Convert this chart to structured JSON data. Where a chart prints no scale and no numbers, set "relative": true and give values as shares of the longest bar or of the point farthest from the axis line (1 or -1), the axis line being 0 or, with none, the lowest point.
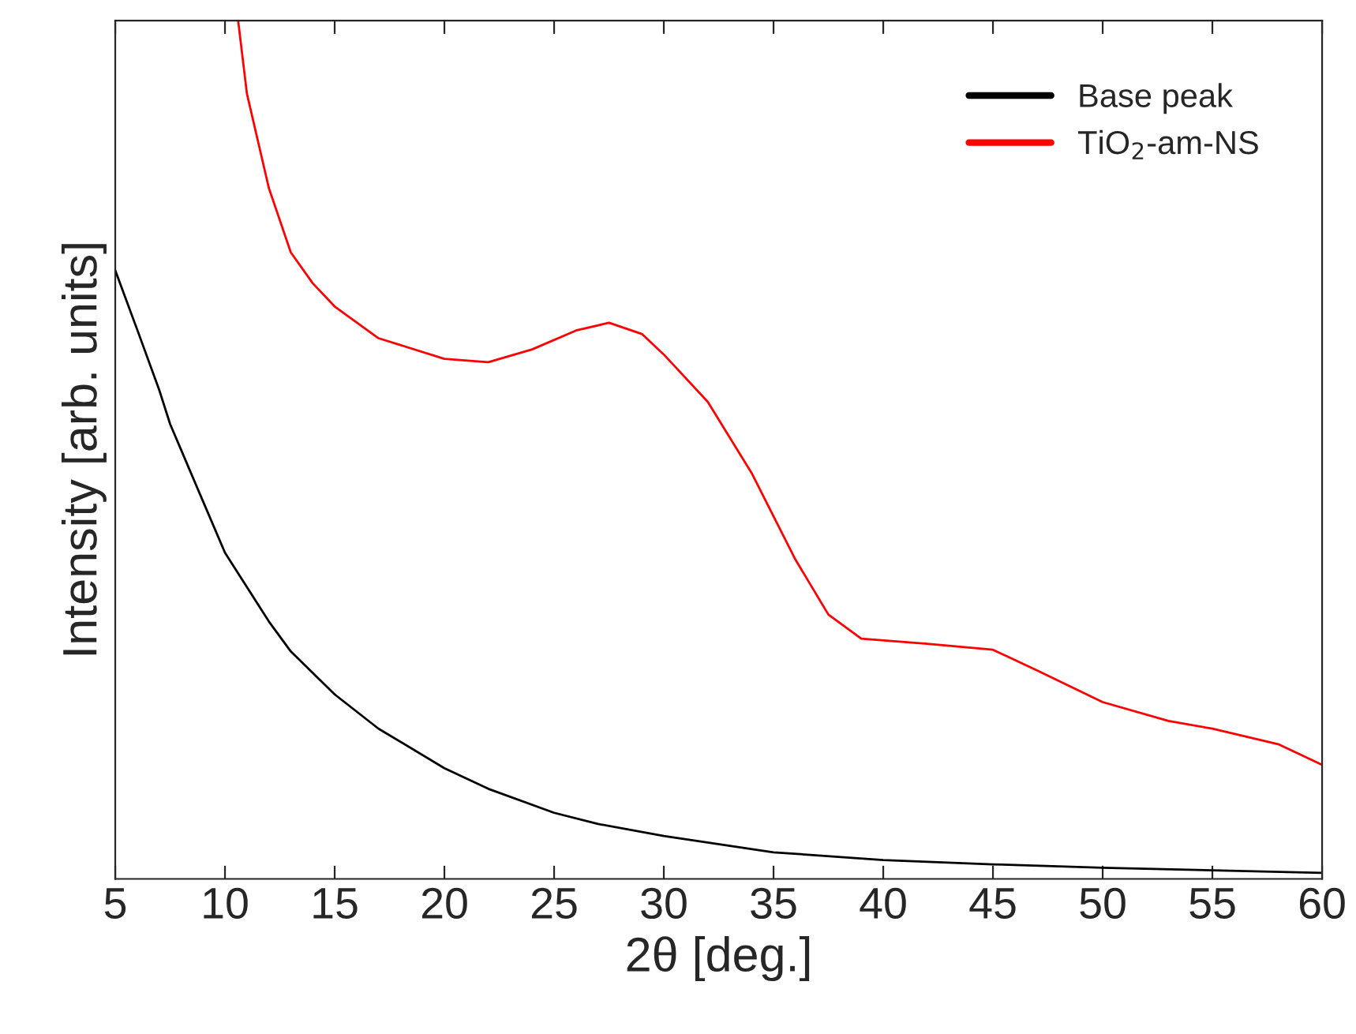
{
  "chart_data": {
    "type": "line",
    "relative": true,
    "xlabel": "2θ [deg.]",
    "ylabel": "Intensity [arb. units]",
    "xlim": [
      5,
      60
    ],
    "xticks": [
      5,
      10,
      15,
      20,
      25,
      30,
      35,
      40,
      45,
      50,
      55,
      60
    ],
    "legend": "top right",
    "grid": false,
    "series": [
      {
        "name": "Base peak",
        "color": "#000000",
        "x": [
          5,
          6,
          7,
          7.5,
          8,
          9,
          10,
          11,
          12,
          13,
          14,
          15,
          17,
          20,
          22,
          25,
          27,
          30,
          35,
          40,
          45,
          50,
          55,
          60
        ],
        "values": [
          0.709,
          0.64,
          0.57,
          0.53,
          0.5,
          0.44,
          0.38,
          0.34,
          0.3,
          0.265,
          0.24,
          0.215,
          0.175,
          0.129,
          0.105,
          0.077,
          0.064,
          0.05,
          0.031,
          0.022,
          0.017,
          0.013,
          0.01,
          0.007
        ]
      },
      {
        "name": "TiO$_{2}$-am-NS",
        "color": "#ff0000",
        "x": [
          10.6,
          11,
          12,
          13,
          14,
          15,
          17,
          20,
          22,
          24,
          26,
          27.5,
          29,
          30,
          32,
          34,
          36,
          37.5,
          39,
          42,
          45,
          47,
          50,
          53,
          55,
          58,
          60
        ],
        "values": [
          1.0,
          0.915,
          0.805,
          0.73,
          0.694,
          0.667,
          0.63,
          0.606,
          0.602,
          0.617,
          0.639,
          0.648,
          0.635,
          0.611,
          0.556,
          0.473,
          0.372,
          0.308,
          0.28,
          0.274,
          0.267,
          0.243,
          0.206,
          0.184,
          0.175,
          0.157,
          0.133
        ]
      }
    ]
  }
}
